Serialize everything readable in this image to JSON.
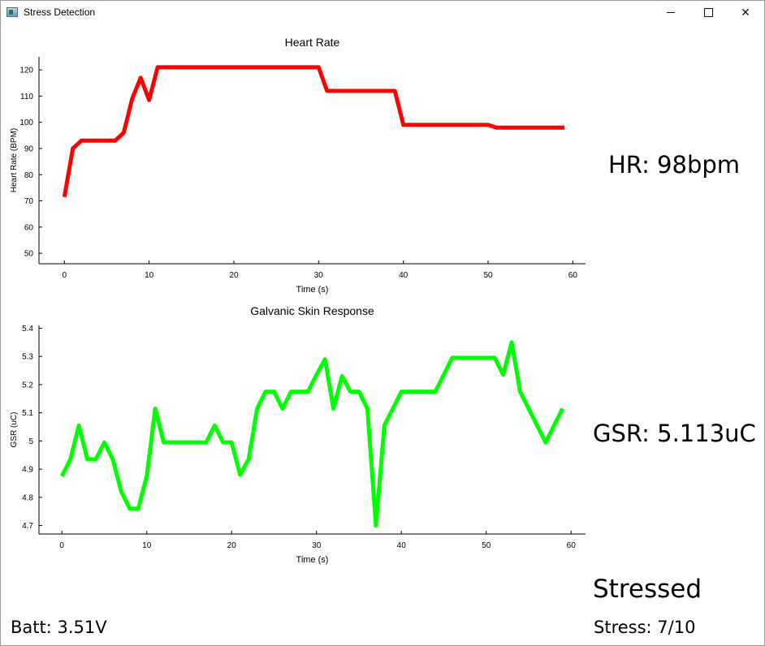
{
  "window": {
    "title": "Stress Detection",
    "minimize_icon": "minimize-icon",
    "maximize_icon": "maximize-icon",
    "close_icon": "close-icon"
  },
  "chart_data": [
    {
      "type": "line",
      "title": "Heart Rate",
      "xlabel": "Time (s)",
      "ylabel": "Heart Rate (BPM)",
      "xlim": [
        -3,
        61.5
      ],
      "ylim": [
        46,
        125
      ],
      "xticks": [
        0,
        10,
        20,
        30,
        40,
        50,
        60
      ],
      "yticks": [
        50,
        60,
        70,
        80,
        90,
        100,
        110,
        120
      ],
      "color": "#ff0000",
      "x": [
        0,
        1,
        2,
        3,
        4,
        5,
        6,
        7,
        8,
        9,
        10,
        11,
        12,
        13,
        14,
        15,
        16,
        17,
        18,
        19,
        20,
        21,
        22,
        23,
        24,
        25,
        26,
        27,
        28,
        29,
        30,
        31,
        32,
        33,
        34,
        35,
        36,
        37,
        38,
        39,
        40,
        41,
        42,
        43,
        44,
        45,
        46,
        47,
        48,
        49,
        50,
        51,
        52,
        53,
        54,
        55,
        56,
        57,
        58,
        59
      ],
      "y": [
        71.5,
        90,
        93,
        93,
        93,
        93,
        93,
        96,
        109,
        117,
        108.5,
        121,
        121,
        121,
        121,
        121,
        121,
        121,
        121,
        121,
        121,
        121,
        121,
        121,
        121,
        121,
        121,
        121,
        121,
        121,
        121,
        112,
        112,
        112,
        112,
        112,
        112,
        112,
        112,
        112,
        99,
        99,
        99,
        99,
        99,
        99,
        99,
        99,
        99,
        99,
        99,
        98,
        98,
        98,
        98,
        98,
        98,
        98,
        98,
        98
      ]
    },
    {
      "type": "line",
      "title": "Galvanic Skin Response",
      "xlabel": "Time (s)",
      "ylabel": "GSR (uC)",
      "xlim": [
        -2.7,
        61.7
      ],
      "ylim": [
        4.67,
        5.41
      ],
      "xticks": [
        0,
        10,
        20,
        30,
        40,
        50,
        60
      ],
      "yticks": [
        4.7,
        4.8,
        4.9,
        5,
        5.1,
        5.2,
        5.3,
        5.4
      ],
      "ytick_labels": [
        "4.7",
        "4.8",
        "4.9",
        "5",
        "5.1",
        "5.2",
        "5.3",
        "5.4"
      ],
      "color": "#00ff00",
      "x": [
        0,
        1,
        2,
        3,
        4,
        5,
        6,
        7,
        8,
        9,
        10,
        11,
        12,
        13,
        14,
        15,
        16,
        17,
        18,
        19,
        20,
        21,
        22,
        23,
        24,
        25,
        26,
        27,
        28,
        29,
        30,
        31,
        32,
        33,
        34,
        35,
        36,
        37,
        38,
        39,
        40,
        41,
        42,
        43,
        44,
        45,
        46,
        47,
        48,
        49,
        50,
        51,
        52,
        53,
        54,
        55,
        56,
        57,
        58,
        59
      ],
      "y": [
        4.875,
        4.935,
        5.055,
        4.935,
        4.935,
        4.995,
        4.935,
        4.82,
        4.76,
        4.76,
        4.875,
        5.115,
        4.995,
        4.995,
        4.995,
        4.995,
        4.995,
        4.995,
        5.055,
        4.995,
        4.995,
        4.88,
        4.935,
        5.115,
        5.175,
        5.175,
        5.115,
        5.175,
        5.175,
        5.175,
        5.235,
        5.29,
        5.115,
        5.23,
        5.175,
        5.175,
        5.115,
        4.7,
        5.055,
        5.115,
        5.175,
        5.175,
        5.175,
        5.175,
        5.175,
        5.235,
        5.295,
        5.295,
        5.295,
        5.295,
        5.295,
        5.295,
        5.235,
        5.35,
        5.175,
        5.115,
        5.055,
        4.995,
        5.055,
        5.115
      ]
    }
  ],
  "readouts": {
    "hr": "HR: 98bpm",
    "gsr": "GSR: 5.113uC",
    "status": "Stressed",
    "stress": "Stress: 7/10",
    "battery": "Batt: 3.51V"
  }
}
